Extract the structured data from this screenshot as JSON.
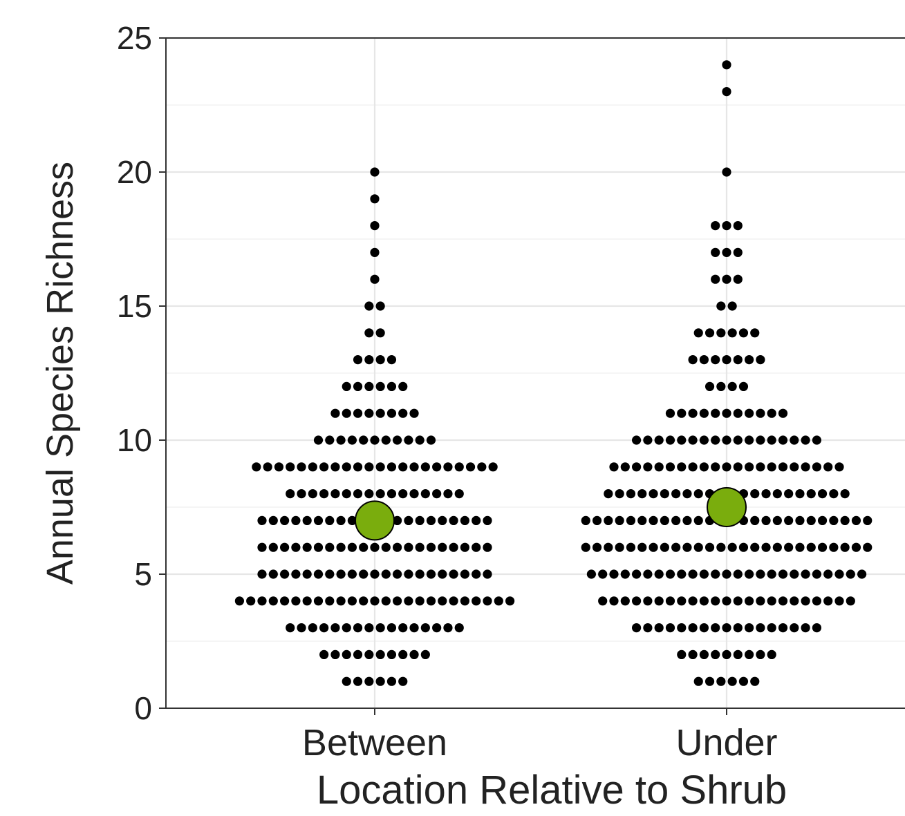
{
  "chart_data": {
    "type": "scatter",
    "subtype": "dotplot-with-mean",
    "title": "",
    "xlabel": "Location Relative to Shrub",
    "ylabel": "Annual Species Richness",
    "categories": [
      "Between",
      "Under"
    ],
    "ylim": [
      0,
      25
    ],
    "yticks": [
      0,
      5,
      10,
      15,
      20,
      25
    ],
    "grid": true,
    "legend": "none",
    "series": [
      {
        "category": "Between",
        "counts": [
          {
            "y": 1,
            "n": 6
          },
          {
            "y": 2,
            "n": 10
          },
          {
            "y": 3,
            "n": 16
          },
          {
            "y": 4,
            "n": 25
          },
          {
            "y": 5,
            "n": 21
          },
          {
            "y": 6,
            "n": 21
          },
          {
            "y": 7,
            "n": 21
          },
          {
            "y": 8,
            "n": 16
          },
          {
            "y": 9,
            "n": 22
          },
          {
            "y": 10,
            "n": 11
          },
          {
            "y": 11,
            "n": 8
          },
          {
            "y": 12,
            "n": 6
          },
          {
            "y": 13,
            "n": 4
          },
          {
            "y": 14,
            "n": 2
          },
          {
            "y": 15,
            "n": 2
          },
          {
            "y": 16,
            "n": 1
          },
          {
            "y": 17,
            "n": 1
          },
          {
            "y": 18,
            "n": 1
          },
          {
            "y": 19,
            "n": 1
          },
          {
            "y": 20,
            "n": 1
          }
        ],
        "mean": 7.0
      },
      {
        "category": "Under",
        "counts": [
          {
            "y": 1,
            "n": 6
          },
          {
            "y": 2,
            "n": 9
          },
          {
            "y": 3,
            "n": 17
          },
          {
            "y": 4,
            "n": 23
          },
          {
            "y": 5,
            "n": 25
          },
          {
            "y": 6,
            "n": 26
          },
          {
            "y": 7,
            "n": 26
          },
          {
            "y": 8,
            "n": 22
          },
          {
            "y": 9,
            "n": 21
          },
          {
            "y": 10,
            "n": 17
          },
          {
            "y": 11,
            "n": 11
          },
          {
            "y": 12,
            "n": 4
          },
          {
            "y": 13,
            "n": 7
          },
          {
            "y": 14,
            "n": 6
          },
          {
            "y": 15,
            "n": 2
          },
          {
            "y": 16,
            "n": 3
          },
          {
            "y": 17,
            "n": 3
          },
          {
            "y": 18,
            "n": 3
          },
          {
            "y": 20,
            "n": 1
          },
          {
            "y": 23,
            "n": 1
          },
          {
            "y": 24,
            "n": 1
          }
        ],
        "mean": 7.5
      }
    ],
    "colors": {
      "points": "#000000",
      "mean_fill": "#7aad0d",
      "mean_stroke": "#000000",
      "grid_major": "#e6e6e6",
      "grid_minor": "#f2f2f2",
      "axis": "#333333"
    }
  }
}
